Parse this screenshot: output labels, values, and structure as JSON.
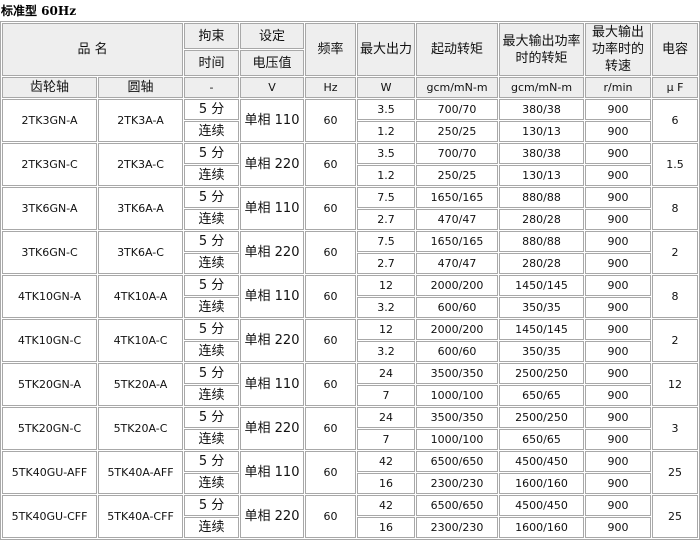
{
  "title": "标准型 60Hz",
  "header": {
    "name": "品 名",
    "brake_1": "拘束",
    "brake_2": "时间",
    "volt_1": "设定",
    "volt_2": "电压值",
    "freq": "频率",
    "power": "最大出力",
    "start_torque": "起动转矩",
    "rated_torque": "最大输出功率时的转矩",
    "rated_speed": "最大输出功率时的转速",
    "cap": "电容"
  },
  "units": [
    "齿轮轴",
    "圆轴",
    "-",
    "V",
    "Hz",
    "W",
    "gcm/mN-m",
    "gcm/mN-m",
    "r/min",
    "μ F"
  ],
  "rows": [
    {
      "gear": "2TK3GN-A",
      "round": "2TK3A-A",
      "voltage": "单相 110",
      "freq": "60",
      "cap": "6",
      "sub": [
        {
          "time": "5 分",
          "power": "3.5",
          "start": "700/70",
          "torque": "380/38",
          "speed": "900"
        },
        {
          "time": "连续",
          "power": "1.2",
          "start": "250/25",
          "torque": "130/13",
          "speed": "900"
        }
      ]
    },
    {
      "gear": "2TK3GN-C",
      "round": "2TK3A-C",
      "voltage": "单相 220",
      "freq": "60",
      "cap": "1.5",
      "sub": [
        {
          "time": "5 分",
          "power": "3.5",
          "start": "700/70",
          "torque": "380/38",
          "speed": "900"
        },
        {
          "time": "连续",
          "power": "1.2",
          "start": "250/25",
          "torque": "130/13",
          "speed": "900"
        }
      ]
    },
    {
      "gear": "3TK6GN-A",
      "round": "3TK6A-A",
      "voltage": "单相 110",
      "freq": "60",
      "cap": "8",
      "sub": [
        {
          "time": "5 分",
          "power": "7.5",
          "start": "1650/165",
          "torque": "880/88",
          "speed": "900"
        },
        {
          "time": "连续",
          "power": "2.7",
          "start": "470/47",
          "torque": "280/28",
          "speed": "900"
        }
      ]
    },
    {
      "gear": "3TK6GN-C",
      "round": "3TK6A-C",
      "voltage": "单相 220",
      "freq": "60",
      "cap": "2",
      "sub": [
        {
          "time": "5 分",
          "power": "7.5",
          "start": "1650/165",
          "torque": "880/88",
          "speed": "900"
        },
        {
          "time": "连续",
          "power": "2.7",
          "start": "470/47",
          "torque": "280/28",
          "speed": "900"
        }
      ]
    },
    {
      "gear": "4TK10GN-A",
      "round": "4TK10A-A",
      "voltage": "单相 110",
      "freq": "60",
      "cap": "8",
      "sub": [
        {
          "time": "5 分",
          "power": "12",
          "start": "2000/200",
          "torque": "1450/145",
          "speed": "900"
        },
        {
          "time": "连续",
          "power": "3.2",
          "start": "600/60",
          "torque": "350/35",
          "speed": "900"
        }
      ]
    },
    {
      "gear": "4TK10GN-C",
      "round": "4TK10A-C",
      "voltage": "单相 220",
      "freq": "60",
      "cap": "2",
      "sub": [
        {
          "time": "5 分",
          "power": "12",
          "start": "2000/200",
          "torque": "1450/145",
          "speed": "900"
        },
        {
          "time": "连续",
          "power": "3.2",
          "start": "600/60",
          "torque": "350/35",
          "speed": "900"
        }
      ]
    },
    {
      "gear": "5TK20GN-A",
      "round": "5TK20A-A",
      "voltage": "单相 110",
      "freq": "60",
      "cap": "12",
      "sub": [
        {
          "time": "5 分",
          "power": "24",
          "start": "3500/350",
          "torque": "2500/250",
          "speed": "900"
        },
        {
          "time": "连续",
          "power": "7",
          "start": "1000/100",
          "torque": "650/65",
          "speed": "900"
        }
      ]
    },
    {
      "gear": "5TK20GN-C",
      "round": "5TK20A-C",
      "voltage": "单相 220",
      "freq": "60",
      "cap": "3",
      "sub": [
        {
          "time": "5 分",
          "power": "24",
          "start": "3500/350",
          "torque": "2500/250",
          "speed": "900"
        },
        {
          "time": "连续",
          "power": "7",
          "start": "1000/100",
          "torque": "650/65",
          "speed": "900"
        }
      ]
    },
    {
      "gear": "5TK40GU-AFF",
      "round": "5TK40A-AFF",
      "voltage": "单相 110",
      "freq": "60",
      "cap": "25",
      "sub": [
        {
          "time": "5 分",
          "power": "42",
          "start": "6500/650",
          "torque": "4500/450",
          "speed": "900"
        },
        {
          "time": "连续",
          "power": "16",
          "start": "2300/230",
          "torque": "1600/160",
          "speed": "900"
        }
      ]
    },
    {
      "gear": "5TK40GU-CFF",
      "round": "5TK40A-CFF",
      "voltage": "单相 220",
      "freq": "60",
      "cap": "25",
      "sub": [
        {
          "time": "5 分",
          "power": "42",
          "start": "6500/650",
          "torque": "4500/450",
          "speed": "900"
        },
        {
          "time": "连续",
          "power": "16",
          "start": "2300/230",
          "torque": "1600/160",
          "speed": "900"
        }
      ]
    }
  ]
}
